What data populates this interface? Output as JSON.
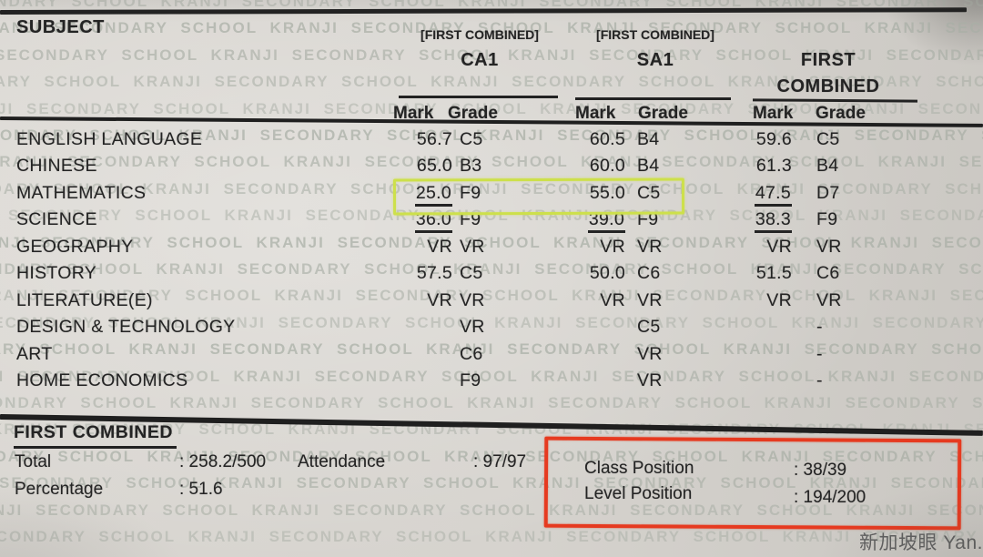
{
  "page": {
    "watermark_phrase": "KRANJI SECONDARY SCHOOL",
    "photo_credit": "新加坡眼 Yan.sg"
  },
  "colors": {
    "paper": "#d6d3ce",
    "ink": "#242424",
    "watermark_text": "#a9afa6",
    "highlight_box": "#cde04b",
    "annotation_box": "#e63a20"
  },
  "table": {
    "subject_header": "SUBJECT",
    "mark_label": "Mark",
    "grade_label": "Grade",
    "groups": [
      {
        "tag": "[FIRST COMBINED]",
        "name_lines": [
          "CA1"
        ]
      },
      {
        "tag": "[FIRST COMBINED]",
        "name_lines": [
          "SA1"
        ]
      },
      {
        "tag": "",
        "name_lines": [
          "FIRST",
          "COMBINED"
        ]
      }
    ],
    "rows": [
      {
        "subject": "ENGLISH LANGUAGE",
        "ca1": {
          "mark": "56.7",
          "grade": "C5"
        },
        "sa1": {
          "mark": "60.5",
          "grade": "B4"
        },
        "fc": {
          "mark": "59.6",
          "grade": "C5"
        }
      },
      {
        "subject": "CHINESE",
        "ca1": {
          "mark": "65.0",
          "grade": "B3"
        },
        "sa1": {
          "mark": "60.0",
          "grade": "B4"
        },
        "fc": {
          "mark": "61.3",
          "grade": "B4"
        }
      },
      {
        "subject": "MATHEMATICS",
        "highlighted": true,
        "ca1": {
          "mark": "25.0",
          "fail": true,
          "grade": "F9"
        },
        "sa1": {
          "mark": "55.0",
          "grade": "C5"
        },
        "fc": {
          "mark": "47.5",
          "fail": true,
          "grade": "D7"
        }
      },
      {
        "subject": "SCIENCE",
        "ca1": {
          "mark": "36.0",
          "fail": true,
          "grade": "F9"
        },
        "sa1": {
          "mark": "39.0",
          "fail": true,
          "grade": "F9"
        },
        "fc": {
          "mark": "38.3",
          "fail": true,
          "grade": "F9"
        }
      },
      {
        "subject": "GEOGRAPHY",
        "ca1": {
          "mark": "VR",
          "grade": "VR"
        },
        "sa1": {
          "mark": "VR",
          "grade": "VR"
        },
        "fc": {
          "mark": "VR",
          "grade": "VR"
        }
      },
      {
        "subject": "HISTORY",
        "ca1": {
          "mark": "57.5",
          "grade": "C5"
        },
        "sa1": {
          "mark": "50.0",
          "grade": "C6"
        },
        "fc": {
          "mark": "51.5",
          "grade": "C6"
        }
      },
      {
        "subject": "LITERATURE(E)",
        "ca1": {
          "mark": "VR",
          "grade": "VR"
        },
        "sa1": {
          "mark": "VR",
          "grade": "VR"
        },
        "fc": {
          "mark": "VR",
          "grade": "VR"
        }
      },
      {
        "subject": "DESIGN & TECHNOLOGY",
        "ca1": {
          "mark": "",
          "grade": "VR"
        },
        "sa1": {
          "mark": "",
          "grade": "C5"
        },
        "fc": {
          "mark": "",
          "grade": "-"
        }
      },
      {
        "subject": "ART",
        "ca1": {
          "mark": "",
          "grade": "C6"
        },
        "sa1": {
          "mark": "",
          "grade": "VR"
        },
        "fc": {
          "mark": "",
          "grade": "-"
        }
      },
      {
        "subject": "HOME ECONOMICS",
        "ca1": {
          "mark": "",
          "grade": "F9"
        },
        "sa1": {
          "mark": "",
          "grade": "VR"
        },
        "fc": {
          "mark": "",
          "grade": "-"
        }
      }
    ]
  },
  "summary": {
    "heading": "FIRST COMBINED",
    "total_label": "Total",
    "total_value": ": 258.2/500",
    "attendance_label": "Attendance",
    "attendance_value": ": 97/97",
    "percentage_label": "Percentage",
    "percentage_value": ": 51.6",
    "class_position_label": "Class Position",
    "class_position_value": ": 38/39",
    "level_position_label": "Level Position",
    "level_position_value": ": 194/200"
  }
}
